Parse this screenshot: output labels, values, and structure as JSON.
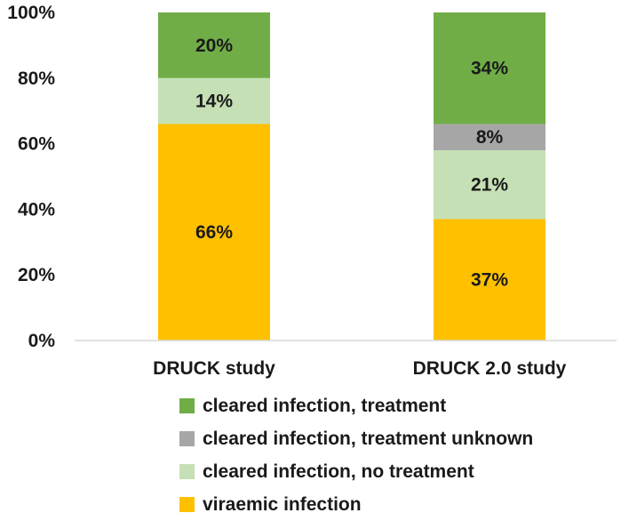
{
  "chart_data": {
    "type": "bar",
    "stacked": true,
    "categories": [
      "DRUCK study",
      "DRUCK 2.0 study"
    ],
    "ylim": [
      0,
      100
    ],
    "yticks": [
      "0%",
      "20%",
      "40%",
      "60%",
      "80%",
      "100%"
    ],
    "series": [
      {
        "name": "viraemic infection",
        "color": "#FFC000",
        "values": [
          66,
          37
        ],
        "labels": [
          "66%",
          "37%"
        ]
      },
      {
        "name": "cleared infection, no treatment",
        "color": "#C5E0B4",
        "values": [
          14,
          21
        ],
        "labels": [
          "14%",
          "21%"
        ]
      },
      {
        "name": "cleared infection, treatment unknown",
        "color": "#A6A6A6",
        "values": [
          0,
          8
        ],
        "labels": [
          "",
          "8%"
        ]
      },
      {
        "name": "cleared infection, treatment",
        "color": "#70AD47",
        "values": [
          20,
          34
        ],
        "labels": [
          "20%",
          "34%"
        ]
      }
    ],
    "legend": [
      {
        "name": "cleared infection, treatment",
        "color": "#70AD47"
      },
      {
        "name": "cleared infection, treatment unknown",
        "color": "#A6A6A6"
      },
      {
        "name": "cleared infection, no treatment",
        "color": "#C5E0B4"
      },
      {
        "name": "viraemic infection",
        "color": "#FFC000"
      }
    ],
    "legend_position": "bottom",
    "grid": false
  }
}
